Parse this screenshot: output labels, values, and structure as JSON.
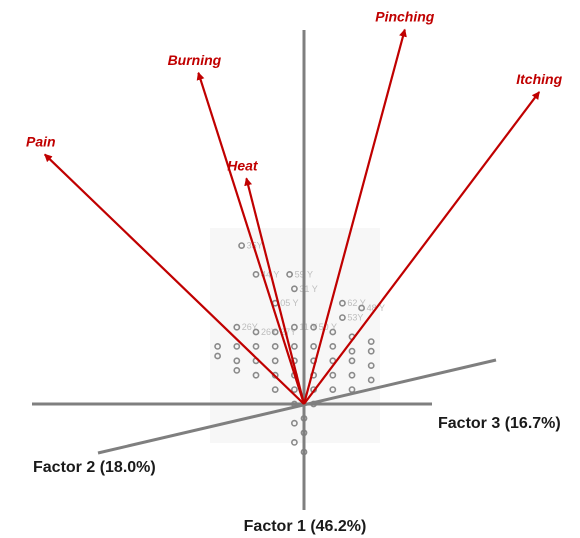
{
  "chart_data": {
    "type": "scatter",
    "title": "",
    "axes": [
      {
        "name": "Factor 1 (46.2%)",
        "variance_pct": 46.2
      },
      {
        "name": "Factor 2 (18.0%)",
        "variance_pct": 18.0
      },
      {
        "name": "Factor 3 (16.7%)",
        "variance_pct": 16.7
      }
    ],
    "grid": false,
    "vectors": [
      {
        "label": "Pain",
        "dx": -0.54,
        "dy": 0.52
      },
      {
        "label": "Burning",
        "dx": -0.22,
        "dy": 0.69
      },
      {
        "label": "Heat",
        "dx": -0.12,
        "dy": 0.47
      },
      {
        "label": "Pinching",
        "dx": 0.21,
        "dy": 0.78
      },
      {
        "label": "Itching",
        "dx": 0.49,
        "dy": 0.65
      }
    ],
    "observations": [
      [
        -0.13,
        0.33
      ],
      [
        -0.1,
        0.27
      ],
      [
        -0.03,
        0.27
      ],
      [
        -0.02,
        0.24
      ],
      [
        -0.06,
        0.21
      ],
      [
        0.08,
        0.21
      ],
      [
        0.12,
        0.2
      ],
      [
        0.08,
        0.18
      ],
      [
        -0.14,
        0.16
      ],
      [
        -0.1,
        0.15
      ],
      [
        -0.06,
        0.15
      ],
      [
        -0.02,
        0.16
      ],
      [
        0.02,
        0.16
      ],
      [
        0.06,
        0.15
      ],
      [
        0.1,
        0.14
      ],
      [
        0.14,
        0.13
      ],
      [
        -0.18,
        0.12
      ],
      [
        -0.14,
        0.12
      ],
      [
        -0.1,
        0.12
      ],
      [
        -0.06,
        0.12
      ],
      [
        -0.02,
        0.12
      ],
      [
        0.02,
        0.12
      ],
      [
        0.06,
        0.12
      ],
      [
        0.1,
        0.11
      ],
      [
        0.14,
        0.11
      ],
      [
        -0.18,
        0.1
      ],
      [
        -0.14,
        0.09
      ],
      [
        -0.1,
        0.09
      ],
      [
        -0.06,
        0.09
      ],
      [
        -0.02,
        0.09
      ],
      [
        0.02,
        0.09
      ],
      [
        0.06,
        0.09
      ],
      [
        0.1,
        0.09
      ],
      [
        0.14,
        0.08
      ],
      [
        -0.14,
        0.07
      ],
      [
        -0.1,
        0.06
      ],
      [
        -0.06,
        0.06
      ],
      [
        -0.02,
        0.06
      ],
      [
        0.02,
        0.06
      ],
      [
        0.06,
        0.06
      ],
      [
        0.1,
        0.06
      ],
      [
        0.14,
        0.05
      ],
      [
        -0.06,
        0.03
      ],
      [
        -0.02,
        0.03
      ],
      [
        0.02,
        0.03
      ],
      [
        0.06,
        0.03
      ],
      [
        0.1,
        0.03
      ],
      [
        -0.02,
        0.0
      ],
      [
        0.02,
        0.0
      ],
      [
        0.0,
        -0.03
      ],
      [
        -0.02,
        -0.04
      ],
      [
        0.0,
        -0.06
      ],
      [
        -0.02,
        -0.08
      ],
      [
        0.0,
        -0.1
      ]
    ],
    "observation_text": [
      "35Y",
      "44 Y",
      "59 Y",
      "31 Y",
      "05 Y",
      "62 Y",
      "48 Y",
      "53Y",
      "26Y",
      "26Y",
      "27Y",
      "11 Y",
      "50 Y"
    ]
  }
}
